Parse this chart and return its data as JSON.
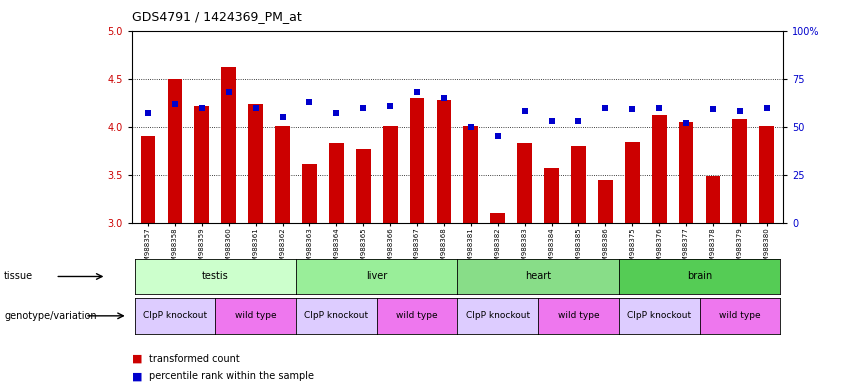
{
  "title": "GDS4791 / 1424369_PM_at",
  "samples": [
    "GSM988357",
    "GSM988358",
    "GSM988359",
    "GSM988360",
    "GSM988361",
    "GSM988362",
    "GSM988363",
    "GSM988364",
    "GSM988365",
    "GSM988366",
    "GSM988367",
    "GSM988368",
    "GSM988381",
    "GSM988382",
    "GSM988383",
    "GSM988384",
    "GSM988385",
    "GSM988386",
    "GSM988375",
    "GSM988376",
    "GSM988377",
    "GSM988378",
    "GSM988379",
    "GSM988380"
  ],
  "bar_values": [
    3.9,
    4.5,
    4.22,
    4.62,
    4.24,
    4.01,
    3.61,
    3.83,
    3.77,
    4.01,
    4.3,
    4.28,
    4.01,
    3.1,
    3.83,
    3.57,
    3.8,
    3.44,
    3.84,
    4.12,
    4.05,
    3.49,
    4.08,
    4.01
  ],
  "blue_percentile": [
    57,
    62,
    60,
    68,
    60,
    55,
    63,
    57,
    60,
    61,
    68,
    65,
    50,
    45,
    58,
    53,
    53,
    60,
    59,
    60,
    52,
    59,
    58,
    60
  ],
  "ylim": [
    3.0,
    5.0
  ],
  "yticks_left": [
    3.0,
    3.5,
    4.0,
    4.5,
    5.0
  ],
  "yticks_right": [
    0,
    25,
    50,
    75,
    100
  ],
  "bar_color": "#cc0000",
  "blue_color": "#0000cc",
  "tissue_groups": [
    {
      "label": "testis",
      "start": 0,
      "end": 6,
      "color": "#ccffcc"
    },
    {
      "label": "liver",
      "start": 6,
      "end": 12,
      "color": "#99ee99"
    },
    {
      "label": "heart",
      "start": 12,
      "end": 18,
      "color": "#88dd88"
    },
    {
      "label": "brain",
      "start": 18,
      "end": 24,
      "color": "#55cc55"
    }
  ],
  "genotype_groups": [
    {
      "label": "ClpP knockout",
      "start": 0,
      "end": 3,
      "color": "#ddccff"
    },
    {
      "label": "wild type",
      "start": 3,
      "end": 6,
      "color": "#ee77ee"
    },
    {
      "label": "ClpP knockout",
      "start": 6,
      "end": 9,
      "color": "#ddccff"
    },
    {
      "label": "wild type",
      "start": 9,
      "end": 12,
      "color": "#ee77ee"
    },
    {
      "label": "ClpP knockout",
      "start": 12,
      "end": 15,
      "color": "#ddccff"
    },
    {
      "label": "wild type",
      "start": 15,
      "end": 18,
      "color": "#ee77ee"
    },
    {
      "label": "ClpP knockout",
      "start": 18,
      "end": 21,
      "color": "#ddccff"
    },
    {
      "label": "wild type",
      "start": 21,
      "end": 24,
      "color": "#ee77ee"
    }
  ],
  "tissue_label": "tissue",
  "genotype_label": "genotype/variation",
  "legend_bar": "transformed count",
  "legend_blue": "percentile rank within the sample",
  "bg_color": "#ffffff"
}
